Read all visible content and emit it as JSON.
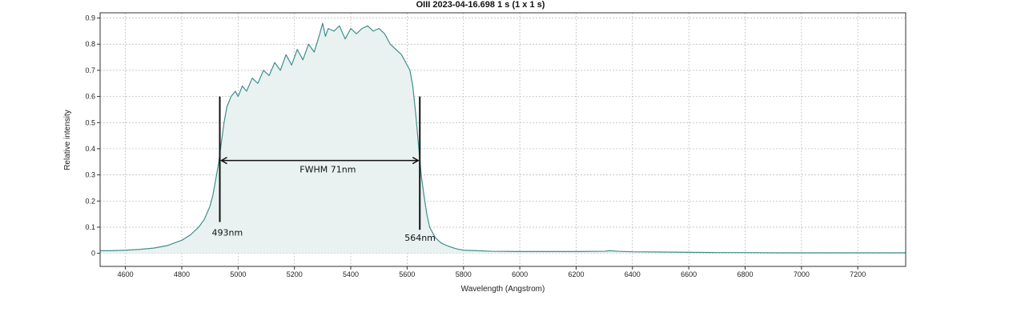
{
  "chart_data": {
    "type": "area",
    "title": "OIII   2023-04-16.698   1 s (1 x 1 s)",
    "xlabel": "Wavelength (Angstrom)",
    "ylabel": "Relative intensity",
    "xlim": [
      4510,
      7370
    ],
    "ylim": [
      -0.05,
      0.92
    ],
    "xticks": [
      4600,
      4800,
      5000,
      5200,
      5400,
      5600,
      5800,
      6000,
      6200,
      6400,
      6600,
      6800,
      7000,
      7200
    ],
    "yticks": [
      0,
      0.1,
      0.2,
      0.3,
      0.4,
      0.5,
      0.6,
      0.7,
      0.8,
      0.9
    ],
    "grid": true,
    "colors": {
      "line": "#3f8f8c",
      "fill": "#e9f2f1",
      "grid": "#b5b5b5",
      "axis": "#333333",
      "annotation": "#111111"
    },
    "series": [
      {
        "x": [
          4510,
          4550,
          4600,
          4650,
          4700,
          4750,
          4800,
          4830,
          4860,
          4880,
          4900,
          4910,
          4920,
          4930,
          4940,
          4950,
          4960,
          4975,
          4990,
          5000,
          5015,
          5030,
          5050,
          5070,
          5090,
          5110,
          5130,
          5150,
          5170,
          5190,
          5210,
          5230,
          5250,
          5270,
          5290,
          5300,
          5310,
          5320,
          5340,
          5360,
          5380,
          5400,
          5420,
          5440,
          5460,
          5480,
          5500,
          5520,
          5540,
          5560,
          5580,
          5600,
          5610,
          5620,
          5630,
          5640,
          5645,
          5650,
          5660,
          5670,
          5680,
          5700,
          5720,
          5740,
          5760,
          5780,
          5800,
          5850,
          5900,
          6000,
          6100,
          6200,
          6300,
          6320,
          6350,
          6400,
          6500,
          6600,
          6700,
          6800,
          6900,
          7000,
          7100,
          7200,
          7300,
          7370
        ],
        "y": [
          0.01,
          0.01,
          0.012,
          0.015,
          0.02,
          0.03,
          0.05,
          0.07,
          0.1,
          0.13,
          0.18,
          0.22,
          0.28,
          0.34,
          0.42,
          0.5,
          0.56,
          0.6,
          0.62,
          0.6,
          0.64,
          0.62,
          0.67,
          0.65,
          0.7,
          0.68,
          0.73,
          0.7,
          0.76,
          0.72,
          0.78,
          0.74,
          0.8,
          0.77,
          0.84,
          0.88,
          0.83,
          0.86,
          0.85,
          0.87,
          0.82,
          0.86,
          0.84,
          0.86,
          0.87,
          0.85,
          0.86,
          0.84,
          0.8,
          0.78,
          0.76,
          0.72,
          0.7,
          0.64,
          0.54,
          0.42,
          0.36,
          0.3,
          0.22,
          0.15,
          0.1,
          0.06,
          0.04,
          0.03,
          0.022,
          0.016,
          0.012,
          0.01,
          0.008,
          0.007,
          0.007,
          0.007,
          0.008,
          0.01,
          0.008,
          0.006,
          0.005,
          0.004,
          0.003,
          0.003,
          0.002,
          0.002,
          0.002,
          0.002,
          0.002,
          0.002
        ]
      }
    ],
    "annotations": {
      "fwhm_label": "FWHM 71nm",
      "fwhm_y": 0.355,
      "left_marker": {
        "x": 4935,
        "y_top": 0.6,
        "y_bottom": 0.12,
        "label": "493nm"
      },
      "right_marker": {
        "x": 5645,
        "y_top": 0.6,
        "y_bottom": 0.09,
        "label": "564nm"
      }
    }
  }
}
